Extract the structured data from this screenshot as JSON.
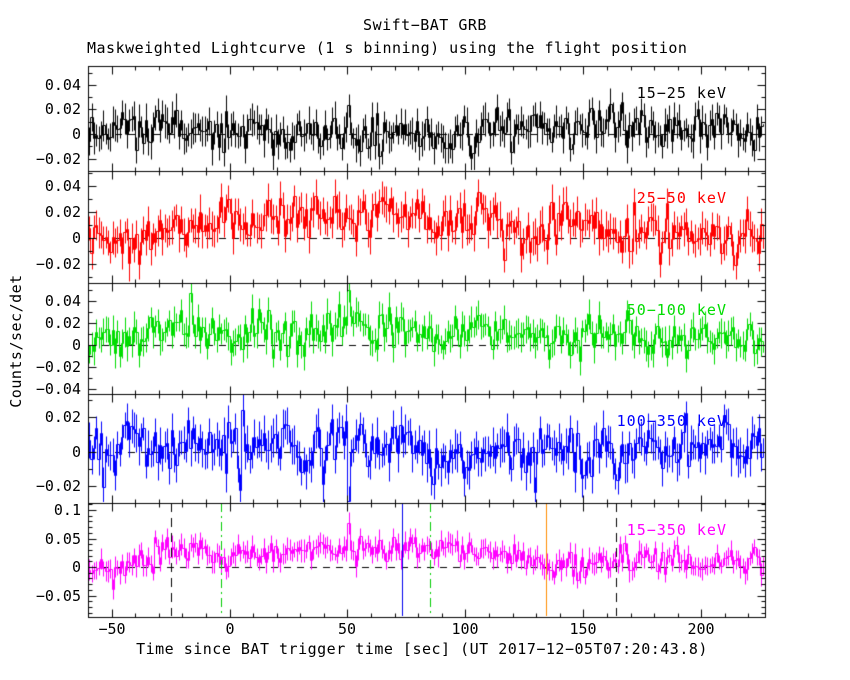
{
  "header": {
    "title": "Swift−BAT GRB",
    "subtitle": "Maskweighted Lightcurve (1 s binning) using the flight position"
  },
  "chart_data": {
    "type": "line",
    "subtype": "step-lightcurve-with-error-bars",
    "title": "Swift−BAT GRB",
    "subtitle": "Maskweighted Lightcurve (1 s binning) using the flight position",
    "y_label": "Counts/sec/det",
    "x": {
      "label": "Time since BAT trigger time [sec] (UT 2017−12−05T07:20:43.8)",
      "range": [
        -60,
        227
      ],
      "major_ticks": [
        -50,
        0,
        50,
        100,
        150,
        200
      ],
      "major_tick_labels": [
        "−50",
        "0",
        "50",
        "100",
        "150",
        "200"
      ],
      "minor_tick_step": 10,
      "bin_seconds": 1,
      "n_bins": 287
    },
    "zero_line": {
      "style": "dashed",
      "color": "#000000",
      "value": 0
    },
    "panels": [
      {
        "label": "15−25 keV",
        "color": "#000000",
        "ylim": [
          -0.0302,
          0.0555
        ],
        "y_major_ticks": [
          0.04,
          0.02,
          0,
          -0.02
        ],
        "y_major_tick_labels": [
          "0.04",
          "0.02",
          "0",
          "−0.02"
        ],
        "y_minor_step": 0.01,
        "synthesis": {
          "seed": 11,
          "noise_sigma": 0.0082,
          "error_bar": 0.011,
          "mean_profile": [
            [
              -60,
              0.002
            ],
            [
              -30,
              0.004
            ],
            [
              0,
              0.005
            ],
            [
              50,
              0.006
            ],
            [
              100,
              0.005
            ],
            [
              150,
              0.004
            ],
            [
              227,
              0.002
            ]
          ],
          "spikes": [
            {
              "t": 50,
              "amp": 0.028
            }
          ]
        }
      },
      {
        "label": "25−50 keV",
        "color": "#ff0000",
        "ylim": [
          -0.0346,
          0.0515
        ],
        "y_major_ticks": [
          0.04,
          0.02,
          0,
          -0.02
        ],
        "y_major_tick_labels": [
          "0.04",
          "0.02",
          "0",
          "−0.02"
        ],
        "y_minor_step": 0.01,
        "synthesis": {
          "seed": 22,
          "noise_sigma": 0.0086,
          "error_bar": 0.011,
          "mean_profile": [
            [
              -60,
              0.006
            ],
            [
              -42,
              0.003
            ],
            [
              -20,
              0.009
            ],
            [
              0,
              0.011
            ],
            [
              40,
              0.013
            ],
            [
              80,
              0.014
            ],
            [
              110,
              0.012
            ],
            [
              140,
              0.007
            ],
            [
              180,
              0.005
            ],
            [
              227,
              0.004
            ]
          ],
          "spikes": []
        }
      },
      {
        "label": "50−100 keV",
        "color": "#00dd00",
        "ylim": [
          -0.0445,
          0.0564
        ],
        "y_major_ticks": [
          0.04,
          0.02,
          0,
          -0.02,
          -0.04
        ],
        "y_major_tick_labels": [
          "0.04",
          "0.02",
          "0",
          "−0.02",
          "−0.04"
        ],
        "y_minor_step": 0.01,
        "synthesis": {
          "seed": 33,
          "noise_sigma": 0.0088,
          "error_bar": 0.011,
          "mean_profile": [
            [
              -60,
              0.002
            ],
            [
              -35,
              0.005
            ],
            [
              -10,
              0.011
            ],
            [
              30,
              0.013
            ],
            [
              70,
              0.012
            ],
            [
              110,
              0.011
            ],
            [
              150,
              0.007
            ],
            [
              190,
              0.005
            ],
            [
              227,
              0.004
            ]
          ],
          "spikes": [
            {
              "t": 50,
              "amp": 0.03
            }
          ]
        }
      },
      {
        "label": "100−350 keV",
        "color": "#0000ff",
        "ylim": [
          -0.0296,
          0.0336
        ],
        "y_major_ticks": [
          0.02,
          0,
          -0.02
        ],
        "y_major_tick_labels": [
          "0.02",
          "0",
          "−0.02"
        ],
        "y_minor_step": 0.01,
        "synthesis": {
          "seed": 44,
          "noise_sigma": 0.0072,
          "error_bar": 0.009,
          "mean_profile": [
            [
              -60,
              0.001
            ],
            [
              0,
              0.003
            ],
            [
              60,
              0.002
            ],
            [
              120,
              0.0
            ],
            [
              227,
              0.0
            ]
          ],
          "spikes": [
            {
              "t": 50,
              "amp": -0.03
            }
          ]
        }
      },
      {
        "label": "15−350 keV",
        "color": "#ff00ff",
        "ylim": [
          -0.0877,
          0.1123
        ],
        "y_major_ticks": [
          0.1,
          0.05,
          0,
          -0.05
        ],
        "y_major_tick_labels": [
          "0.1",
          "0.05",
          "0",
          "−0.05"
        ],
        "y_minor_step": 0.01,
        "synthesis": {
          "seed": 55,
          "noise_sigma": 0.0115,
          "error_bar": 0.016,
          "mean_profile": [
            [
              -60,
              0.002
            ],
            [
              -45,
              0.006
            ],
            [
              -30,
              0.016
            ],
            [
              -15,
              0.024
            ],
            [
              0,
              0.03
            ],
            [
              30,
              0.032
            ],
            [
              60,
              0.03
            ],
            [
              90,
              0.024
            ],
            [
              120,
              0.018
            ],
            [
              150,
              0.012
            ],
            [
              190,
              0.008
            ],
            [
              227,
              0.008
            ]
          ],
          "spikes": [
            {
              "t": -32,
              "amp": 0.04
            },
            {
              "t": 50,
              "amp": 0.07
            }
          ]
        }
      }
    ],
    "event_lines": [
      {
        "t": -25,
        "style": "dashed",
        "color": "#000000"
      },
      {
        "t": -3.5,
        "style": "dashdot",
        "color": "#00cc00"
      },
      {
        "t": 73,
        "style": "solid",
        "color": "#0000ee"
      },
      {
        "t": 85,
        "style": "dashdot",
        "color": "#00cc00"
      },
      {
        "t": 134,
        "style": "solid",
        "color": "#ff8c00"
      },
      {
        "t": 164,
        "style": "dashed",
        "color": "#000000"
      }
    ],
    "legend_position": "inside-top-right-per-panel",
    "grid": false
  }
}
